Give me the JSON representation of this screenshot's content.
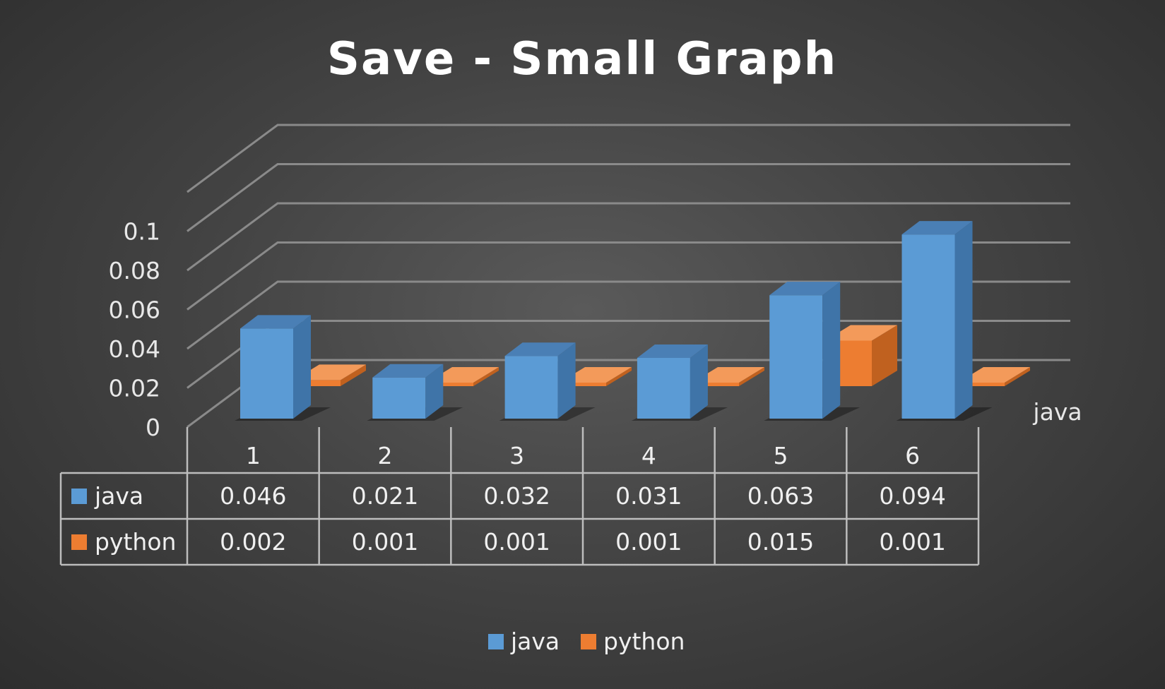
{
  "chart_data": {
    "type": "bar",
    "title": "Save - Small Graph",
    "categories": [
      "1",
      "2",
      "3",
      "4",
      "5",
      "6"
    ],
    "series": [
      {
        "name": "java",
        "values": [
          0.046,
          0.021,
          0.032,
          0.031,
          0.063,
          0.094
        ]
      },
      {
        "name": "python",
        "values": [
          0.002,
          0.001,
          0.001,
          0.001,
          0.015,
          0.001
        ]
      }
    ],
    "table": {
      "java": [
        "0.046",
        "0.021",
        "0.032",
        "0.031",
        "0.063",
        "0.094"
      ],
      "python": [
        "0.002",
        "0.001",
        "0.001",
        "0.001",
        "0.015",
        "0.001"
      ]
    },
    "yticks": [
      "0",
      "0.02",
      "0.04",
      "0.06",
      "0.08",
      "0.1"
    ],
    "ylim": [
      0,
      0.12
    ],
    "depth_axis_label": "java",
    "legend_position": "bottom",
    "grid": true,
    "colors": {
      "java": "#5b9bd5",
      "python": "#ed7d31"
    }
  }
}
